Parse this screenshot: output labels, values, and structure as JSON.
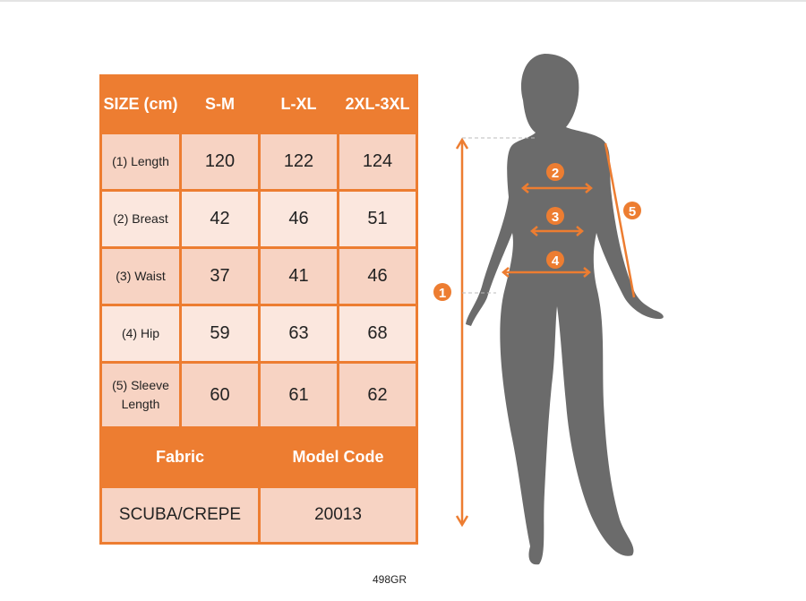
{
  "table": {
    "header": [
      "SIZE (cm)",
      "S-M",
      "L-XL",
      "2XL-3XL"
    ],
    "rows": [
      {
        "label": "(1) Length",
        "values": [
          "120",
          "122",
          "124"
        ]
      },
      {
        "label": "(2) Breast",
        "values": [
          "42",
          "46",
          "51"
        ]
      },
      {
        "label": "(3) Waist",
        "values": [
          "37",
          "41",
          "46"
        ]
      },
      {
        "label": "(4) Hip",
        "values": [
          "59",
          "63",
          "68"
        ]
      },
      {
        "label": "(5) Sleeve Length",
        "values": [
          "60",
          "61",
          "62"
        ]
      }
    ],
    "footer_header": [
      "Fabric",
      "Model Code"
    ],
    "footer_values": [
      "SCUBA/CREPE",
      "20013"
    ]
  },
  "diagram": {
    "markers": [
      "1",
      "2",
      "3",
      "4",
      "5"
    ]
  },
  "code": "498GR",
  "colors": {
    "accent": "#ED7D31",
    "silhouette": "#6B6B6B"
  }
}
